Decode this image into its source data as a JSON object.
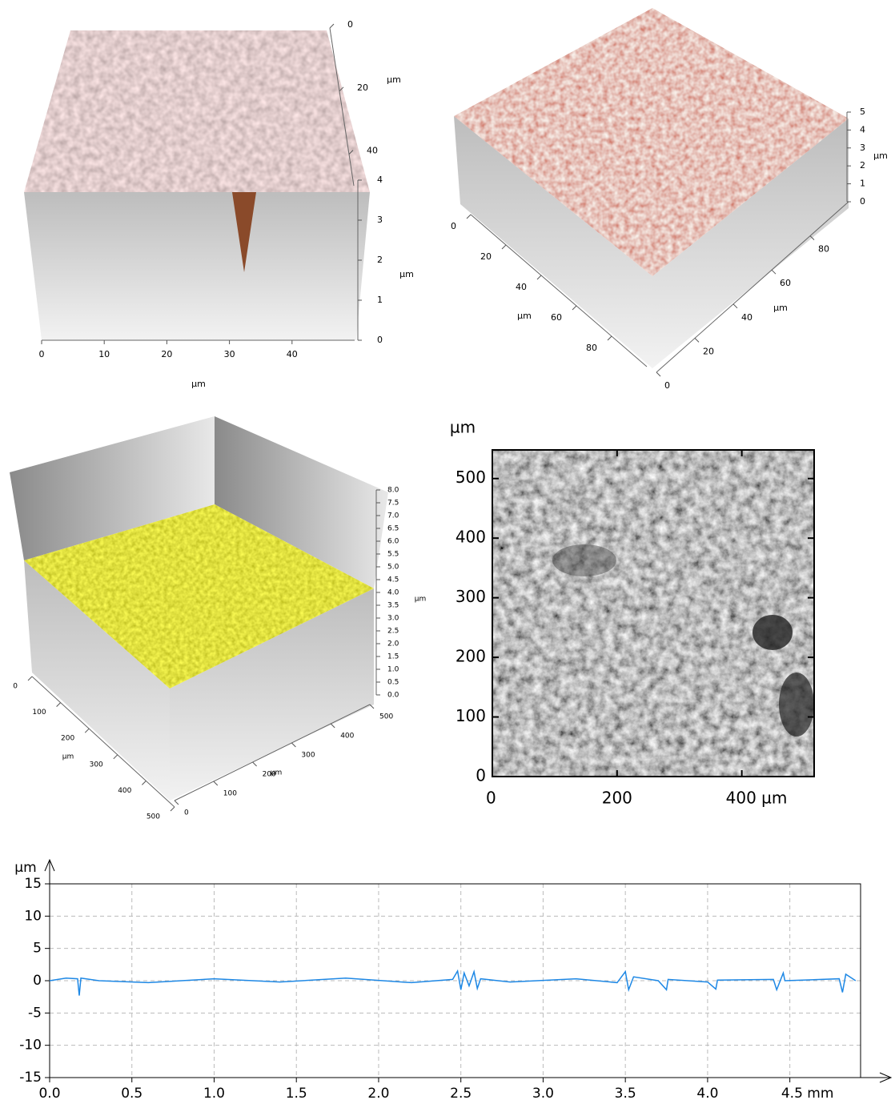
{
  "chart_data": [
    {
      "type": "surface3d",
      "axes": [
        {
          "label": "µm",
          "lim": [
            0,
            50
          ],
          "ticks": [
            0,
            10,
            20,
            30,
            40
          ]
        },
        {
          "label": "µm",
          "lim": [
            0,
            4
          ],
          "ticks": [
            0,
            1,
            2,
            3,
            4
          ]
        },
        {
          "label": "µm",
          "lim": [
            0,
            50
          ],
          "ticks": [
            0,
            20,
            40
          ]
        }
      ]
    },
    {
      "type": "surface3d",
      "axes": [
        {
          "label": "µm",
          "lim": [
            0,
            5
          ],
          "ticks": [
            0,
            1,
            2,
            3,
            4,
            5
          ]
        },
        {
          "label": "µm",
          "lim": [
            0,
            100
          ],
          "ticks": [
            0,
            20,
            40,
            60,
            80
          ]
        },
        {
          "label": "µm",
          "lim": [
            0,
            100
          ],
          "ticks": [
            0,
            20,
            40,
            60,
            80
          ]
        }
      ]
    },
    {
      "type": "surface3d",
      "axes": [
        {
          "label": "µm",
          "lim": [
            0,
            8
          ],
          "ticks": [
            {
              "value": 0,
              "label": "0.0"
            },
            0.5,
            {
              "value": 1,
              "label": "1.0"
            },
            1.5,
            {
              "value": 2,
              "label": "2.0"
            },
            2.5,
            {
              "value": 3,
              "label": "3.0"
            },
            3.5,
            {
              "value": 4,
              "label": "4.0"
            },
            4.5,
            {
              "value": 5,
              "label": "5.0"
            },
            5.5,
            {
              "value": 6,
              "label": "6.0"
            },
            6.5,
            {
              "value": 7,
              "label": "7.0"
            },
            7.5,
            {
              "value": 8,
              "label": "8.0"
            }
          ]
        },
        {
          "label": "µm",
          "lim": [
            0,
            500
          ],
          "ticks": [
            0,
            100,
            200,
            300,
            400,
            500
          ]
        },
        {
          "label": "µm",
          "lim": [
            0,
            500
          ],
          "ticks": [
            0,
            100,
            200,
            300,
            400,
            500
          ]
        }
      ]
    },
    {
      "type": "image",
      "ylabel": "µm",
      "xlim": [
        0,
        516
      ],
      "ylim": [
        0,
        548
      ],
      "xticks": [
        0,
        200,
        {
          "value": 400,
          "label": "400 µm"
        }
      ],
      "yticks": [
        0,
        100,
        200,
        300,
        400,
        500
      ]
    },
    {
      "type": "line",
      "ylabel": "µm",
      "xlim": [
        0,
        4.93
      ],
      "ylim": [
        -15,
        15
      ],
      "grid": true,
      "xticks": [
        {
          "value": 0,
          "label": "0.0"
        },
        0.5,
        {
          "value": 1,
          "label": "1.0"
        },
        1.5,
        {
          "value": 2,
          "label": "2.0"
        },
        2.5,
        {
          "value": 3,
          "label": "3.0"
        },
        3.5,
        {
          "value": 4,
          "label": "4.0"
        },
        {
          "value": 4.5,
          "label": "4.5 mm"
        }
      ],
      "yticks": [
        -15,
        -10,
        -5,
        {
          "value": 0,
          "label": "0"
        },
        5,
        10,
        15
      ],
      "series": [
        {
          "color": "#1e88e5",
          "x": [
            0,
            0.1,
            0.17,
            0.18,
            0.19,
            0.3,
            0.6,
            1.0,
            1.4,
            1.8,
            2.2,
            2.45,
            2.48,
            2.5,
            2.52,
            2.55,
            2.58,
            2.6,
            2.62,
            2.8,
            3.2,
            3.45,
            3.5,
            3.52,
            3.55,
            3.7,
            3.75,
            3.76,
            4.0,
            4.05,
            4.06,
            4.4,
            4.42,
            4.46,
            4.47,
            4.8,
            4.82,
            4.84,
            4.9
          ],
          "values": [
            0,
            0.4,
            0.3,
            -2.3,
            0.4,
            0,
            -0.3,
            0.3,
            -0.2,
            0.4,
            -0.3,
            0.2,
            1.5,
            -1.4,
            1.2,
            -0.8,
            1.4,
            -1.2,
            0.3,
            -0.2,
            0.3,
            -0.3,
            1.4,
            -1.4,
            0.6,
            0,
            -1.4,
            0.2,
            -0.2,
            -1.3,
            0.1,
            0.2,
            -1.4,
            1.2,
            0,
            0.3,
            -1.8,
            1,
            0
          ]
        }
      ]
    }
  ]
}
